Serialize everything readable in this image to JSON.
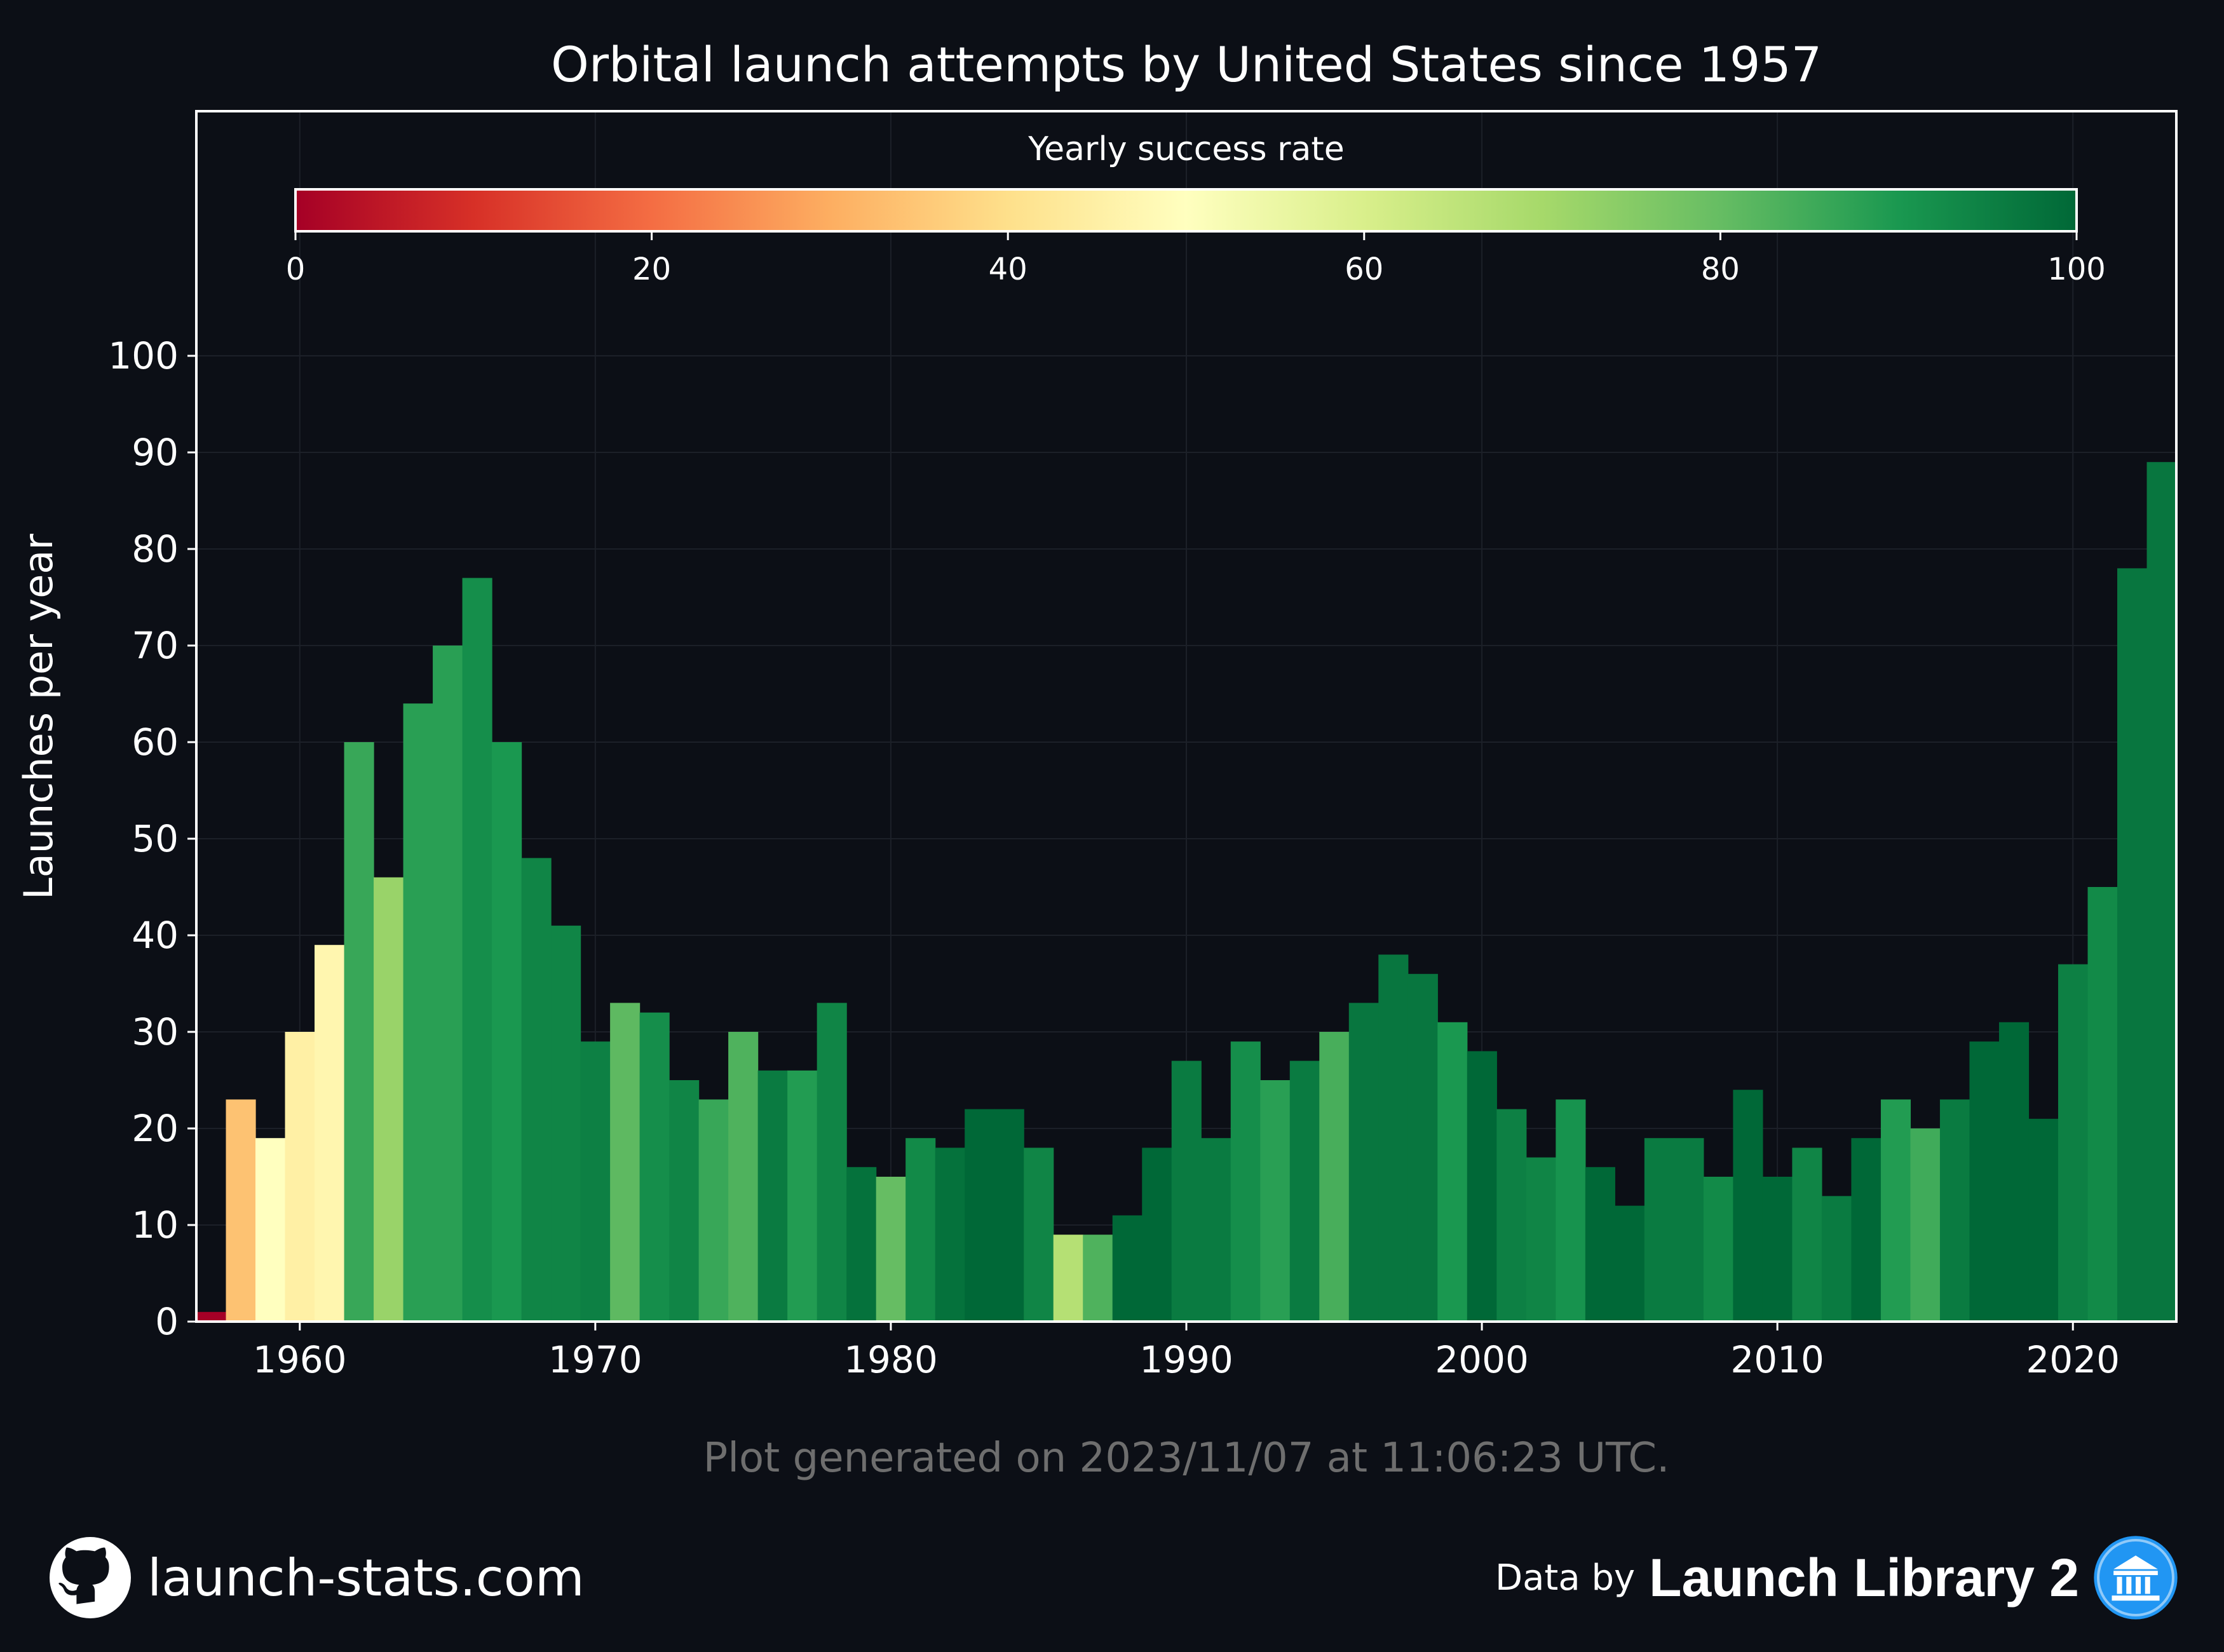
{
  "footer": {
    "generated": "Plot generated on 2023/11/07 at 11:06:23 UTC.",
    "site": "launch-stats.com",
    "data_by": "Data by",
    "library": "Launch Library 2",
    "github_icon": "github-icon",
    "library_icon": "library-building-icon"
  },
  "chart_data": {
    "type": "bar",
    "title": "Orbital launch attempts by United States since 1957",
    "ylabel": "Launches per year",
    "xlabel": "",
    "ylim": [
      0,
      100
    ],
    "xlim": [
      1956.5,
      2023.5
    ],
    "yticks": [
      0,
      10,
      20,
      30,
      40,
      50,
      60,
      70,
      80,
      90,
      100
    ],
    "xticks": [
      1960,
      1970,
      1980,
      1990,
      2000,
      2010,
      2020
    ],
    "grid": true,
    "colorbar": {
      "label": "Yearly success rate",
      "range": [
        0,
        100
      ],
      "ticks": [
        0,
        20,
        40,
        60,
        80,
        100
      ],
      "colormap": "RdYlGn",
      "placement": "top inside"
    },
    "years": [
      1957,
      1958,
      1959,
      1960,
      1961,
      1962,
      1963,
      1964,
      1965,
      1966,
      1967,
      1968,
      1969,
      1970,
      1971,
      1972,
      1973,
      1974,
      1975,
      1976,
      1977,
      1978,
      1979,
      1980,
      1981,
      1982,
      1983,
      1984,
      1985,
      1986,
      1987,
      1988,
      1989,
      1990,
      1991,
      1992,
      1993,
      1994,
      1995,
      1996,
      1997,
      1998,
      1999,
      2000,
      2001,
      2002,
      2003,
      2004,
      2005,
      2006,
      2007,
      2008,
      2009,
      2010,
      2011,
      2012,
      2013,
      2014,
      2015,
      2016,
      2017,
      2018,
      2019,
      2020,
      2021,
      2022,
      2023
    ],
    "values": [
      1,
      23,
      19,
      30,
      39,
      60,
      46,
      64,
      70,
      77,
      60,
      48,
      41,
      29,
      33,
      32,
      25,
      23,
      30,
      26,
      26,
      33,
      16,
      15,
      19,
      18,
      22,
      22,
      18,
      9,
      9,
      11,
      18,
      27,
      19,
      29,
      25,
      27,
      30,
      33,
      38,
      36,
      31,
      28,
      22,
      17,
      23,
      16,
      12,
      19,
      19,
      15,
      24,
      15,
      18,
      13,
      19,
      23,
      20,
      23,
      29,
      31,
      21,
      37,
      45,
      78,
      89
    ],
    "success_rate": [
      0,
      34,
      50,
      45,
      47,
      86,
      72,
      88,
      88,
      92,
      90,
      94,
      94,
      95,
      81,
      92,
      94,
      86,
      83,
      96,
      89,
      94,
      98,
      80,
      93,
      98,
      100,
      100,
      94,
      67,
      83,
      100,
      100,
      96,
      96,
      92,
      88,
      96,
      84,
      97,
      97,
      97,
      90,
      100,
      95,
      94,
      91,
      100,
      100,
      96,
      96,
      93,
      100,
      100,
      94,
      96,
      100,
      89,
      85,
      96,
      100,
      100,
      100,
      95,
      93,
      97,
      97
    ]
  }
}
